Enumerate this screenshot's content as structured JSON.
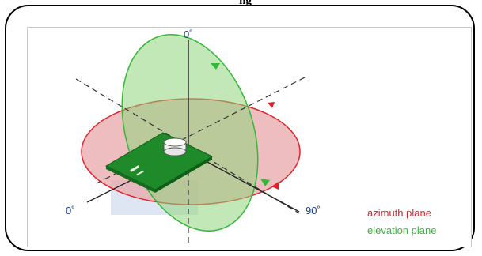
{
  "caption": "ng",
  "labels": {
    "top_zero": "0˚",
    "left_zero": "0˚",
    "right_ninety": "90˚"
  },
  "legend": {
    "azimuth": "azimuth plane",
    "elevation": "elevation plane"
  },
  "colors": {
    "azimuth_fill": "#e8a7aa",
    "azimuth_stroke": "#e0212a",
    "elevation_fill": "#9edc8f",
    "elevation_stroke": "#36b837",
    "axis_line": "#333333",
    "board": "#1f8a2a",
    "axis_label": "#1f3f9a"
  }
}
